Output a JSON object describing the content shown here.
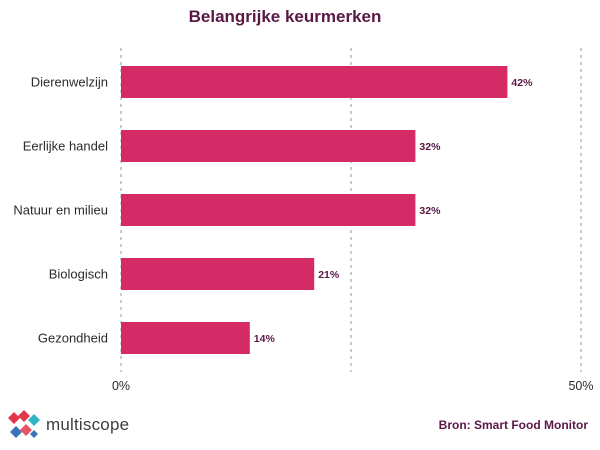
{
  "chart_data": {
    "type": "bar",
    "orientation": "horizontal",
    "title": "Belangrijke keurmerken",
    "categories": [
      "Dierenwelzijn",
      "Eerlijke handel",
      "Natuur en milieu",
      "Biologisch",
      "Gezondheid"
    ],
    "values": [
      42,
      32,
      32,
      21,
      14
    ],
    "value_labels": [
      "42%",
      "32%",
      "32%",
      "21%",
      "14%"
    ],
    "xlim": [
      0,
      50
    ],
    "x_ticks": [
      0,
      25,
      50
    ],
    "x_tick_labels": [
      "0%",
      "",
      "50%"
    ],
    "grid": "vertical dashed",
    "bar_color": "#d42a66"
  },
  "footer": {
    "logo_text": "multiscope",
    "source": "Bron: Smart Food Monitor"
  },
  "colors": {
    "title": "#5a1846",
    "logo_red": "#e2374a",
    "logo_blue": "#3a74b8",
    "logo_teal": "#2fb5c6"
  }
}
